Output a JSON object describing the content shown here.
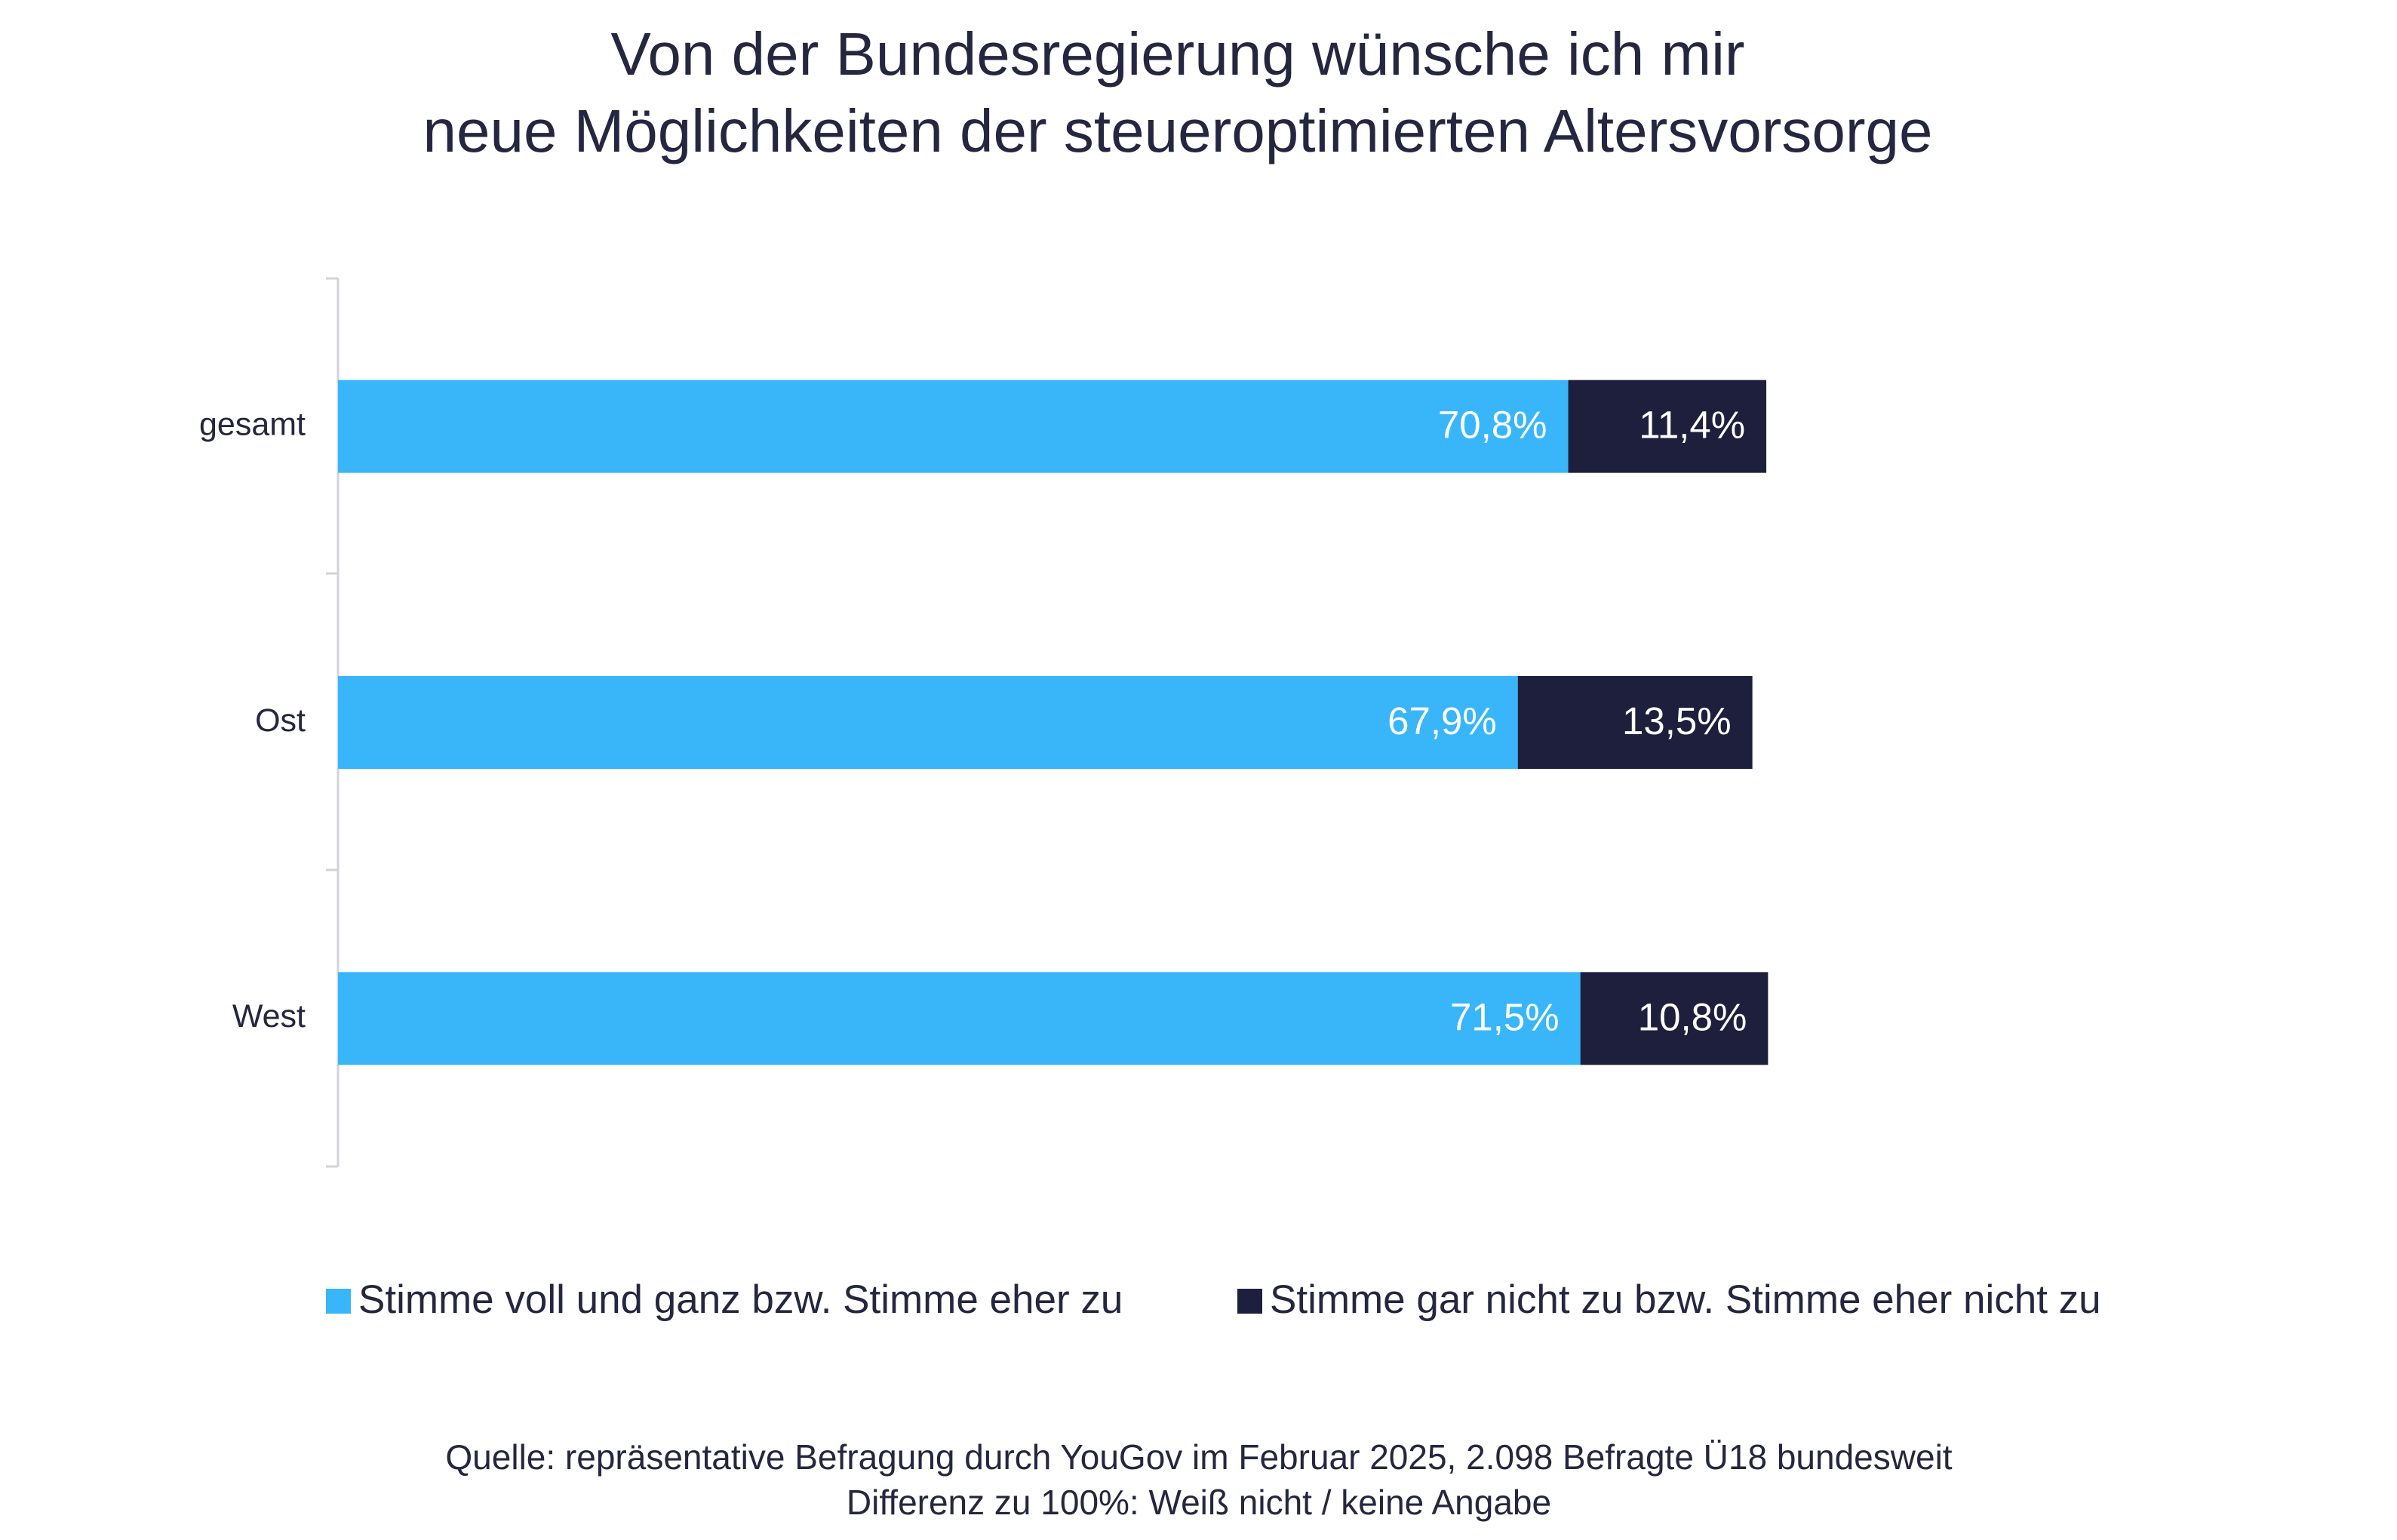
{
  "chart_data": {
    "type": "stacked-bar-horizontal",
    "title": [
      "Von der Bundesregierung wünsche ich mir",
      "neue Möglichkeiten der steueroptimierten Altersvorsorge"
    ],
    "categories": [
      "gesamt",
      "Ost",
      "West"
    ],
    "series": [
      {
        "name": "Stimme voll und ganz bzw. Stimme eher zu",
        "color": "#38b6f9",
        "label_color": "#ffffff",
        "values": [
          70.8,
          67.9,
          71.5
        ],
        "value_labels": [
          "70,8%",
          "67,9%",
          "71,5%"
        ]
      },
      {
        "name": "Stimme gar nicht zu bzw. Stimme eher nicht zu",
        "color": "#1e1f3d",
        "label_color": "#ffffff",
        "values": [
          11.4,
          13.5,
          10.8
        ],
        "value_labels": [
          "11,4%",
          "13,5%",
          "10,8%"
        ]
      }
    ],
    "footnotes": [
      "Quelle: repräsentative Befragung durch YouGov im Februar 2025, 2.098 Befragte Ü18 bundesweit",
      "Differenz zu 100%: Weiß nicht / keine Angabe"
    ]
  }
}
